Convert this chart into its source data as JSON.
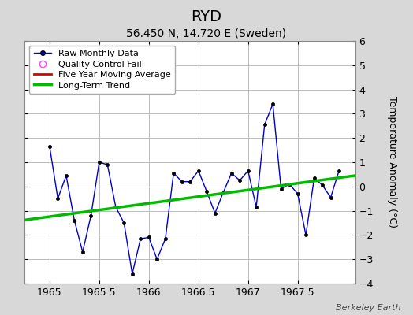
{
  "title": "RYD",
  "subtitle": "56.450 N, 14.720 E (Sweden)",
  "credit": "Berkeley Earth",
  "ylabel": "Temperature Anomaly (°C)",
  "xlim": [
    1964.75,
    1968.08
  ],
  "ylim": [
    -4,
    6
  ],
  "yticks": [
    -4,
    -3,
    -2,
    -1,
    0,
    1,
    2,
    3,
    4,
    5,
    6
  ],
  "xticks": [
    1965,
    1965.5,
    1966,
    1966.5,
    1967,
    1967.5
  ],
  "xtick_labels": [
    "1965",
    "1965.5",
    "1966",
    "1966.5",
    "1967",
    "1967.5"
  ],
  "raw_x": [
    1965.0,
    1965.083,
    1965.167,
    1965.25,
    1965.333,
    1965.417,
    1965.5,
    1965.583,
    1965.667,
    1965.75,
    1965.833,
    1965.917,
    1966.0,
    1966.083,
    1966.167,
    1966.25,
    1966.333,
    1966.417,
    1966.5,
    1966.583,
    1966.667,
    1966.75,
    1966.833,
    1966.917,
    1967.0,
    1967.083,
    1967.167,
    1967.25,
    1967.333,
    1967.417,
    1967.5,
    1967.583,
    1967.667,
    1967.75,
    1967.833,
    1967.917
  ],
  "raw_y": [
    1.65,
    -0.5,
    0.45,
    -1.4,
    -2.7,
    -1.2,
    1.0,
    0.9,
    -0.85,
    -1.5,
    -3.6,
    -2.15,
    -2.1,
    -3.0,
    -2.15,
    0.55,
    0.2,
    0.2,
    0.65,
    -0.2,
    -1.1,
    -0.25,
    0.55,
    0.25,
    0.65,
    -0.85,
    2.55,
    3.4,
    -0.1,
    0.1,
    -0.3,
    -2.0,
    0.35,
    0.05,
    -0.45,
    0.65
  ],
  "trend_x": [
    1964.75,
    1968.08
  ],
  "trend_y": [
    -1.38,
    0.45
  ],
  "raw_color": "#0000cc",
  "raw_marker_color": "#000000",
  "raw_linewidth": 1.0,
  "trend_color": "#00bb00",
  "trend_linewidth": 2.5,
  "ma_color": "#dd0000",
  "ma_linewidth": 2,
  "qc_color": "#ff44ff",
  "background_color": "#d8d8d8",
  "plot_bg_color": "#ffffff",
  "grid_color": "#bbbbbb",
  "title_fontsize": 14,
  "subtitle_fontsize": 10,
  "label_fontsize": 9,
  "tick_fontsize": 9,
  "legend_fontsize": 8,
  "credit_fontsize": 8
}
